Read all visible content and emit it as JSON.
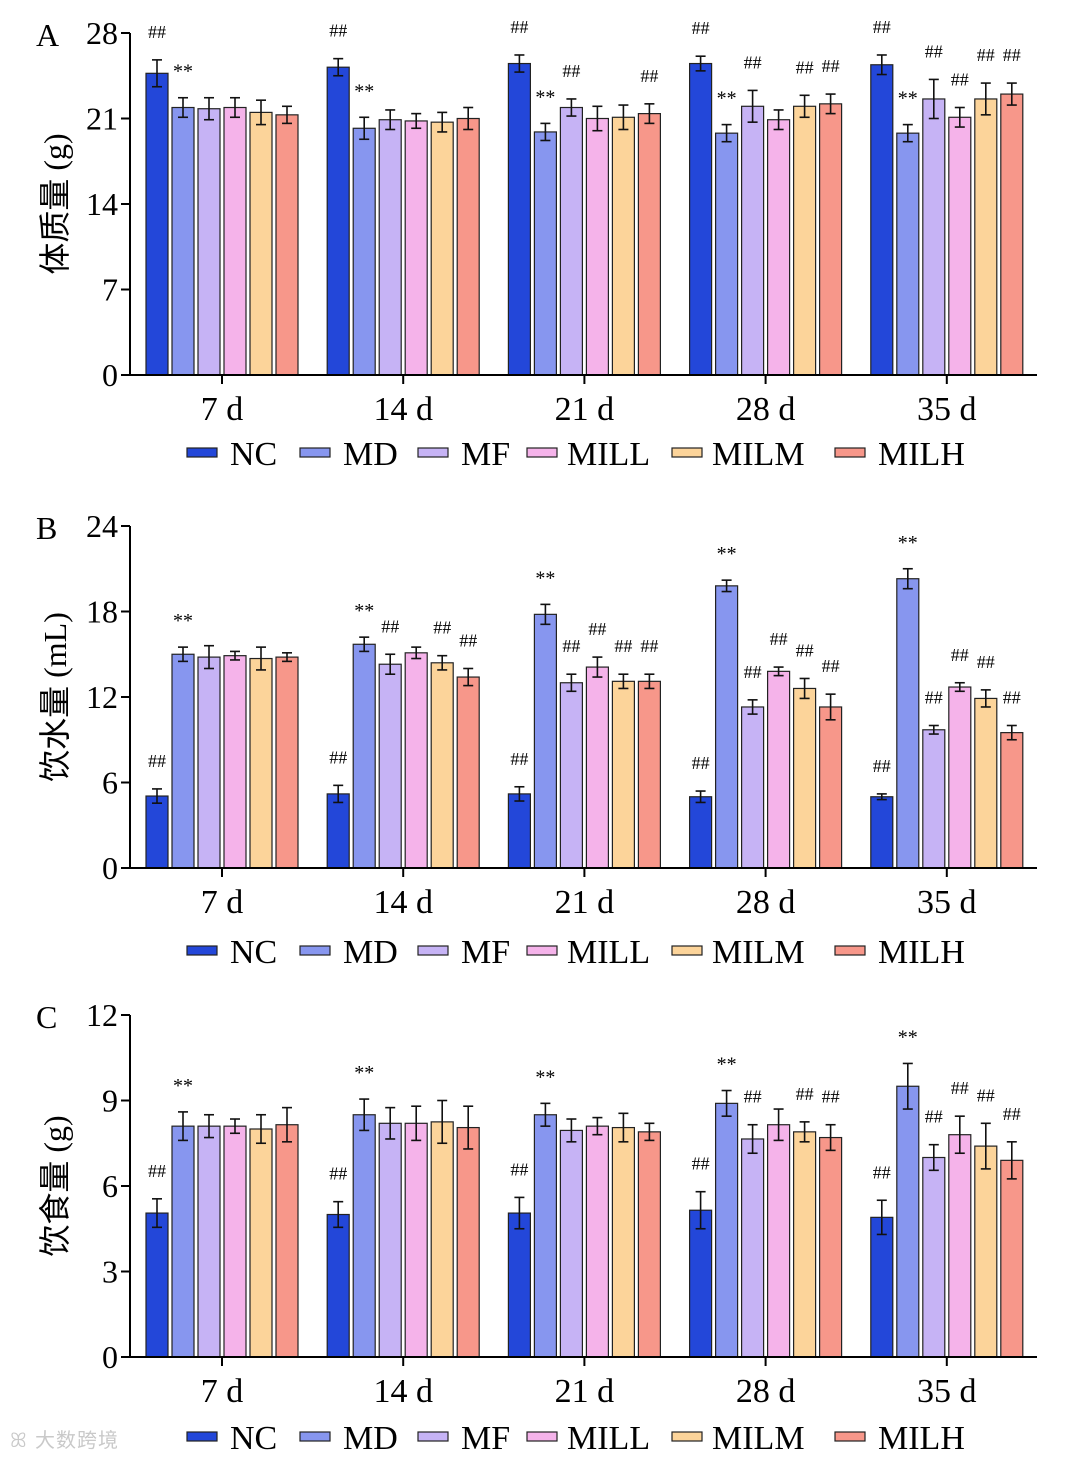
{
  "colors": {
    "NC": "#2347d9",
    "MD": "#8796ef",
    "MF": "#c6b3f5",
    "MILL": "#f5b3ea",
    "MILM": "#fcd49a",
    "MILH": "#f7978a"
  },
  "watermark": "大数跨境",
  "chart_data": [
    {
      "type": "bar",
      "panel": "A",
      "ylabel": "体质量 (g)",
      "ylim": [
        0,
        28
      ],
      "yticks": [
        "0",
        "7",
        "14",
        "21",
        "28"
      ],
      "categories": [
        "7 d",
        "14 d",
        "21 d",
        "28 d",
        "35 d"
      ],
      "legend": [
        "NC",
        "MD",
        "MF",
        "MILL",
        "MILM",
        "MILH"
      ],
      "series": [
        {
          "name": "NC",
          "values": [
            24.7,
            25.2,
            25.5,
            25.5,
            25.4
          ],
          "errors": [
            1.1,
            0.7,
            0.7,
            0.6,
            0.8
          ]
        },
        {
          "name": "MD",
          "values": [
            21.9,
            20.2,
            19.9,
            19.8,
            19.8
          ],
          "errors": [
            0.8,
            0.9,
            0.7,
            0.7,
            0.7
          ]
        },
        {
          "name": "MF",
          "values": [
            21.8,
            20.9,
            21.9,
            22.0,
            22.6
          ],
          "errors": [
            0.9,
            0.8,
            0.7,
            1.3,
            1.6
          ]
        },
        {
          "name": "MILL",
          "values": [
            21.9,
            20.8,
            21.0,
            20.9,
            21.1
          ],
          "errors": [
            0.8,
            0.6,
            1.0,
            0.8,
            0.8
          ]
        },
        {
          "name": "MILM",
          "values": [
            21.5,
            20.7,
            21.1,
            22.0,
            22.6
          ],
          "errors": [
            1.0,
            0.8,
            1.0,
            0.9,
            1.3
          ]
        },
        {
          "name": "MILH",
          "values": [
            21.3,
            21.0,
            21.4,
            22.2,
            23.0
          ],
          "errors": [
            0.7,
            0.9,
            0.8,
            0.8,
            0.9
          ]
        }
      ],
      "annotations": [
        [
          "##",
          "**",
          "",
          "",
          "",
          ""
        ],
        [
          "##",
          "**",
          "",
          "",
          "",
          ""
        ],
        [
          "##",
          "**",
          "##",
          "",
          "",
          "##"
        ],
        [
          "##",
          "**",
          "##",
          "",
          "##",
          "##"
        ],
        [
          "##",
          "**",
          "##",
          "##",
          "##",
          "##"
        ]
      ]
    },
    {
      "type": "bar",
      "panel": "B",
      "ylabel": "饮水量 (mL)",
      "ylim": [
        0,
        24
      ],
      "yticks": [
        "0",
        "6",
        "12",
        "18",
        "24"
      ],
      "categories": [
        "7 d",
        "14 d",
        "21 d",
        "28 d",
        "35 d"
      ],
      "legend": [
        "NC",
        "MD",
        "MF",
        "MILL",
        "MILM",
        "MILH"
      ],
      "series": [
        {
          "name": "NC",
          "values": [
            5.05,
            5.2,
            5.2,
            5.0,
            5.0
          ],
          "errors": [
            0.5,
            0.6,
            0.5,
            0.4,
            0.2
          ]
        },
        {
          "name": "MD",
          "values": [
            15.0,
            15.7,
            17.8,
            19.8,
            20.3
          ],
          "errors": [
            0.5,
            0.5,
            0.7,
            0.4,
            0.7
          ]
        },
        {
          "name": "MF",
          "values": [
            14.8,
            14.3,
            13.0,
            11.3,
            9.7
          ],
          "errors": [
            0.8,
            0.7,
            0.6,
            0.5,
            0.3
          ]
        },
        {
          "name": "MILL",
          "values": [
            14.9,
            15.1,
            14.1,
            13.8,
            12.7
          ],
          "errors": [
            0.3,
            0.4,
            0.7,
            0.3,
            0.3
          ]
        },
        {
          "name": "MILM",
          "values": [
            14.7,
            14.4,
            13.1,
            12.6,
            11.9
          ],
          "errors": [
            0.8,
            0.5,
            0.5,
            0.7,
            0.6
          ]
        },
        {
          "name": "MILH",
          "values": [
            14.8,
            13.4,
            13.1,
            11.3,
            9.5
          ],
          "errors": [
            0.3,
            0.6,
            0.5,
            0.9,
            0.5
          ]
        }
      ],
      "annotations": [
        [
          "##",
          "**",
          "",
          "",
          "",
          ""
        ],
        [
          "##",
          "**",
          "##",
          "",
          "##",
          "##"
        ],
        [
          "##",
          "**",
          "##",
          "##",
          "##",
          "##"
        ],
        [
          "##",
          "**",
          "##",
          "##",
          "##",
          "##"
        ],
        [
          "##",
          "**",
          "##",
          "##",
          "##",
          "##"
        ]
      ]
    },
    {
      "type": "bar",
      "panel": "C",
      "ylabel": "饮食量 (g)",
      "ylim": [
        0,
        12
      ],
      "yticks": [
        "0",
        "3",
        "6",
        "9",
        "12"
      ],
      "categories": [
        "7 d",
        "14 d",
        "21 d",
        "28 d",
        "35 d"
      ],
      "legend": [
        "NC",
        "MD",
        "MF",
        "MILL",
        "MILM",
        "MILH"
      ],
      "series": [
        {
          "name": "NC",
          "values": [
            5.05,
            5.0,
            5.05,
            5.15,
            4.9
          ],
          "errors": [
            0.5,
            0.45,
            0.55,
            0.65,
            0.6
          ]
        },
        {
          "name": "MD",
          "values": [
            8.1,
            8.5,
            8.5,
            8.9,
            9.5
          ],
          "errors": [
            0.5,
            0.55,
            0.4,
            0.45,
            0.8
          ]
        },
        {
          "name": "MF",
          "values": [
            8.1,
            8.2,
            7.95,
            7.65,
            7.0
          ],
          "errors": [
            0.4,
            0.55,
            0.4,
            0.5,
            0.45
          ]
        },
        {
          "name": "MILL",
          "values": [
            8.1,
            8.2,
            8.1,
            8.15,
            7.8
          ],
          "errors": [
            0.25,
            0.6,
            0.3,
            0.55,
            0.65
          ]
        },
        {
          "name": "MILM",
          "values": [
            8.0,
            8.25,
            8.05,
            7.9,
            7.4
          ],
          "errors": [
            0.5,
            0.75,
            0.5,
            0.35,
            0.8
          ]
        },
        {
          "name": "MILH",
          "values": [
            8.15,
            8.05,
            7.9,
            7.7,
            6.9
          ],
          "errors": [
            0.6,
            0.75,
            0.3,
            0.45,
            0.65
          ]
        }
      ],
      "annotations": [
        [
          "##",
          "**",
          "",
          "",
          "",
          ""
        ],
        [
          "##",
          "**",
          "",
          "",
          "",
          ""
        ],
        [
          "##",
          "**",
          "",
          "",
          "",
          ""
        ],
        [
          "##",
          "**",
          "##",
          "",
          "##",
          "##"
        ],
        [
          "##",
          "**",
          "##",
          "##",
          "##",
          "##"
        ]
      ]
    }
  ]
}
